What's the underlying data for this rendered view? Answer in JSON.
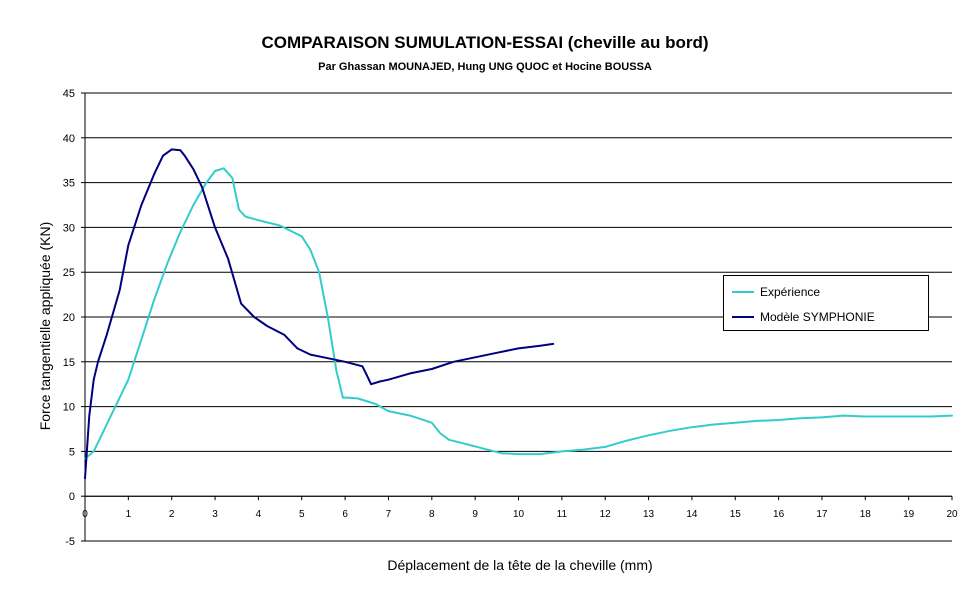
{
  "chart_data": {
    "type": "line",
    "title": "COMPARAISON SUMULATION-ESSAI (cheville au bord)",
    "subtitle": "Par Ghassan MOUNAJED, Hung UNG QUOC  et Hocine BOUSSA",
    "xlabel": "Déplacement de la tête de la cheville  (mm)",
    "ylabel": "Force tangentielle appliquée  (KN)",
    "xlim": [
      0,
      20
    ],
    "ylim": [
      -5,
      45
    ],
    "xticks": [
      "0",
      "1",
      "2",
      "3",
      "4",
      "5",
      "6",
      "7",
      "8",
      "9",
      "10",
      "11",
      "12",
      "13",
      "14",
      "15",
      "16",
      "17",
      "18",
      "19",
      "20"
    ],
    "yticks": [
      "45",
      "40",
      "35",
      "30",
      "25",
      "20",
      "15",
      "10",
      "5",
      "0",
      "-5"
    ],
    "grid": "horizontal",
    "legend_position": "right",
    "series": [
      {
        "name": "Expérience",
        "color": "#33cccc",
        "x": [
          0,
          0.2,
          0.5,
          0.8,
          1.0,
          1.3,
          1.6,
          1.9,
          2.2,
          2.5,
          2.8,
          3.0,
          3.2,
          3.4,
          3.55,
          3.7,
          4.0,
          4.5,
          5.0,
          5.2,
          5.4,
          5.6,
          5.8,
          5.95,
          6.05,
          6.3,
          6.7,
          7.0,
          7.5,
          8.0,
          8.2,
          8.4,
          8.8,
          9.2,
          9.6,
          10.0,
          10.5,
          11.0,
          11.5,
          12.0,
          12.5,
          13.0,
          13.5,
          14.0,
          14.5,
          15.0,
          15.5,
          16.0,
          16.5,
          17.0,
          17.5,
          18.0,
          18.5,
          19.0,
          19.5,
          20.0
        ],
        "y": [
          4.2,
          5.0,
          8.0,
          11.0,
          13.0,
          17.5,
          22.0,
          26.0,
          29.5,
          32.5,
          35.0,
          36.3,
          36.6,
          35.5,
          32.0,
          31.2,
          30.8,
          30.2,
          29.0,
          27.5,
          25.0,
          20.0,
          14.0,
          11.0,
          11.0,
          10.9,
          10.3,
          9.5,
          9.0,
          8.2,
          7.0,
          6.3,
          5.8,
          5.3,
          4.8,
          4.7,
          4.7,
          5.0,
          5.2,
          5.5,
          6.2,
          6.8,
          7.3,
          7.7,
          8.0,
          8.2,
          8.4,
          8.5,
          8.7,
          8.8,
          9.0,
          8.9,
          8.9,
          8.9,
          8.9,
          9.0
        ]
      },
      {
        "name": "Modèle SYMPHONIE",
        "color": "#000080",
        "x": [
          0,
          0.1,
          0.2,
          0.3,
          0.5,
          0.8,
          1.0,
          1.3,
          1.6,
          1.8,
          2.0,
          2.2,
          2.3,
          2.5,
          2.7,
          3.0,
          3.3,
          3.6,
          3.9,
          4.2,
          4.6,
          4.9,
          5.2,
          5.6,
          6.0,
          6.4,
          6.5,
          6.6,
          6.8,
          7.0,
          7.5,
          8.0,
          8.5,
          9.0,
          9.5,
          10.0,
          10.5,
          10.8
        ],
        "y": [
          2.0,
          9.0,
          13.0,
          15.0,
          18.0,
          23.0,
          28.0,
          32.5,
          36.0,
          38.0,
          38.7,
          38.6,
          38.0,
          36.5,
          34.5,
          30.0,
          26.5,
          21.5,
          20.0,
          19.0,
          18.0,
          16.5,
          15.8,
          15.4,
          15.0,
          14.5,
          13.5,
          12.5,
          12.8,
          13.0,
          13.7,
          14.2,
          15.0,
          15.5,
          16.0,
          16.5,
          16.8,
          17.0
        ]
      }
    ]
  }
}
